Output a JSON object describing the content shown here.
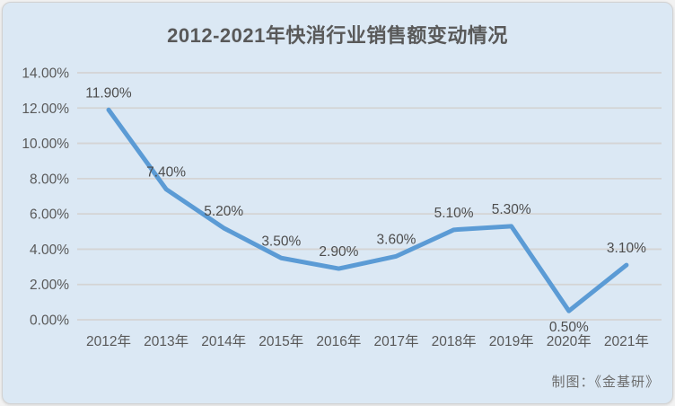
{
  "page": {
    "title": "2012-2021年快消行业销售额变动情况",
    "credit": "制图：《金基研》"
  },
  "colors": {
    "card_background": "#dbe8f4",
    "line": "#5b9bd5",
    "gridline": "#d4d4d4",
    "axis_text": "#595959",
    "data_label_text": "#4d4d4d",
    "title_text": "#595959",
    "credit_text": "#6d6d6d"
  },
  "chart_data": {
    "type": "line",
    "title": "2012-2021年快消行业销售额变动情况",
    "categories": [
      "2012年",
      "2013年",
      "2014年",
      "2015年",
      "2016年",
      "2017年",
      "2018年",
      "2019年",
      "2020年",
      "2021年"
    ],
    "values": [
      11.9,
      7.4,
      5.2,
      3.5,
      2.9,
      3.6,
      5.1,
      5.3,
      0.5,
      3.1
    ],
    "data_labels": [
      "11.90%",
      "7.40%",
      "5.20%",
      "3.50%",
      "2.90%",
      "3.60%",
      "5.10%",
      "5.30%",
      "0.50%",
      "3.10%"
    ],
    "data_label_positions": [
      "above",
      "above",
      "above",
      "above",
      "above",
      "above",
      "above",
      "above",
      "below",
      "above"
    ],
    "xlabel": "",
    "ylabel": "",
    "y_axis": {
      "min": 0,
      "max": 14,
      "step": 2,
      "tick_labels": [
        "0.00%",
        "2.00%",
        "4.00%",
        "6.00%",
        "8.00%",
        "10.00%",
        "12.00%",
        "14.00%"
      ]
    },
    "grid": true,
    "legend": false,
    "annotations": [
      "制图：《金基研》"
    ]
  }
}
